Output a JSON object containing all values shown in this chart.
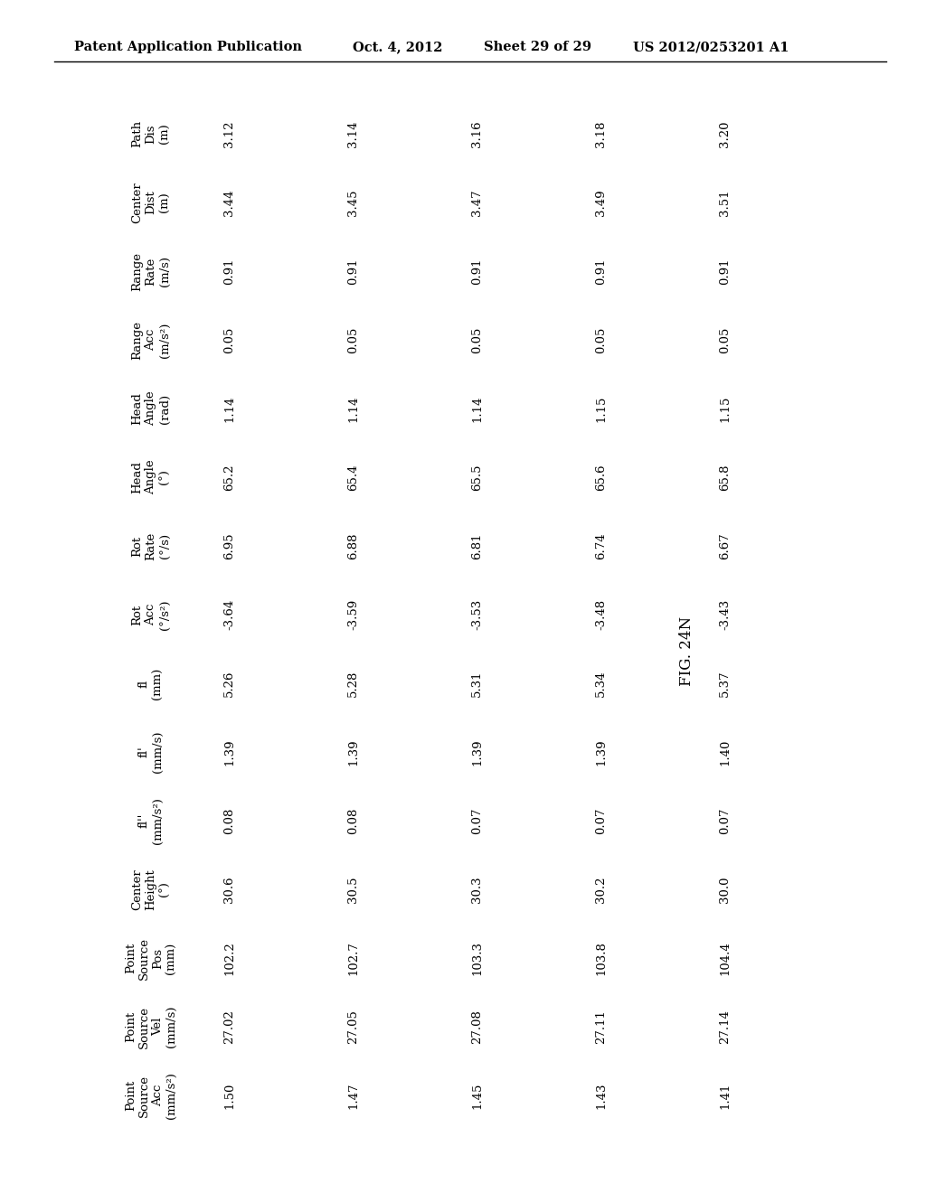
{
  "header_line1": "Patent Application Publication",
  "header_date": "Oct. 4, 2012",
  "header_sheet": "Sheet 29 of 29",
  "header_patent": "US 2012/0253201 A1",
  "fig_label": "FIG. 24N",
  "col_headers": [
    "Path\nDis\n(m)",
    "Center\nDist\n(m)",
    "Range\nRate\n(m/s)",
    "Range\nAcc\n(m/s²)",
    "Head\nAngle\n(rad)",
    "Head\nAngle\n(°)",
    "Rot\nRate\n(°/s)",
    "Rot\nAcc\n(°/s²)",
    "fl\n(mm)",
    "fl'\n(mm/s)",
    "fl''\n(mm/s²)",
    "Center\nHeight\n(°)",
    "Point\nSource\nPos\n(mm)",
    "Point\nSource\nVel\n(mm/s)",
    "Point\nSource\nAcc\n(mm/s²)"
  ],
  "rows": [
    [
      "3.12",
      "3.44",
      "0.91",
      "0.05",
      "1.14",
      "65.2",
      "6.95",
      "-3.64",
      "5.26",
      "1.39",
      "0.08",
      "30.6",
      "102.2",
      "27.02",
      "1.50"
    ],
    [
      "3.14",
      "3.45",
      "0.91",
      "0.05",
      "1.14",
      "65.4",
      "6.88",
      "-3.59",
      "5.28",
      "1.39",
      "0.08",
      "30.5",
      "102.7",
      "27.05",
      "1.47"
    ],
    [
      "3.16",
      "3.47",
      "0.91",
      "0.05",
      "1.14",
      "65.5",
      "6.81",
      "-3.53",
      "5.31",
      "1.39",
      "0.07",
      "30.3",
      "103.3",
      "27.08",
      "1.45"
    ],
    [
      "3.18",
      "3.49",
      "0.91",
      "0.05",
      "1.15",
      "65.6",
      "6.74",
      "-3.48",
      "5.34",
      "1.39",
      "0.07",
      "30.2",
      "103.8",
      "27.11",
      "1.43"
    ],
    [
      "3.20",
      "3.51",
      "0.91",
      "0.05",
      "1.15",
      "65.8",
      "6.67",
      "-3.43",
      "5.37",
      "1.40",
      "0.07",
      "30.0",
      "104.4",
      "27.14",
      "1.41"
    ]
  ],
  "background_color": "#ffffff",
  "text_color": "#000000",
  "header_font_size": 10.5,
  "table_font_size": 9.5,
  "fig_font_size": 12
}
